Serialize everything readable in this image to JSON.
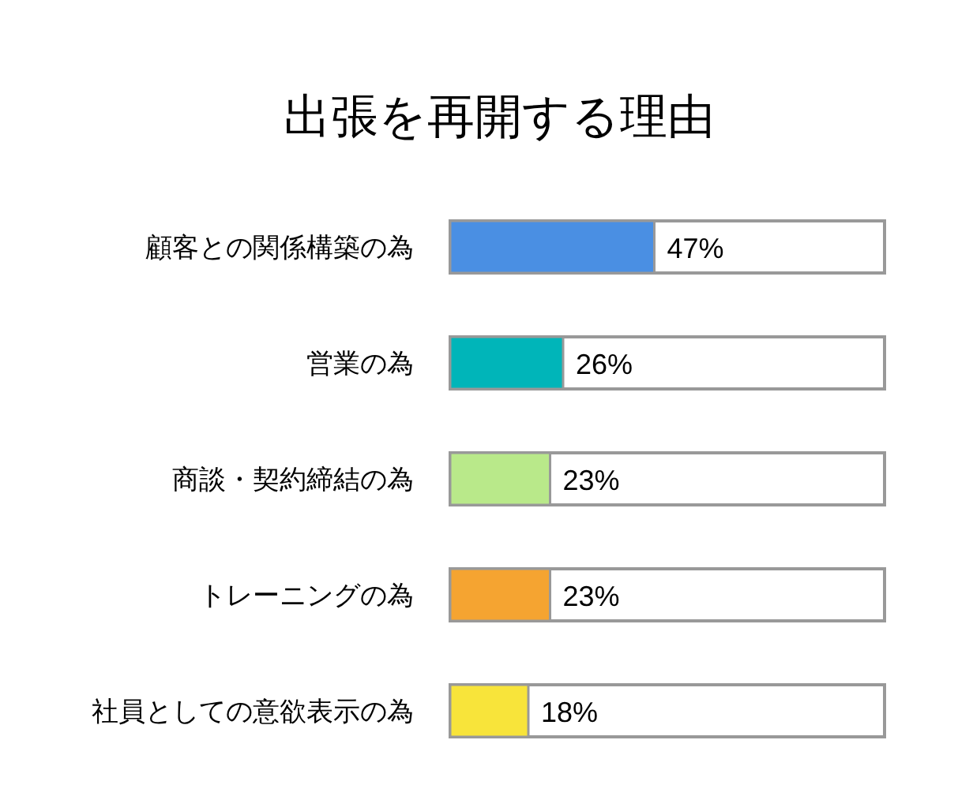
{
  "chart_data": {
    "type": "bar",
    "orientation": "horizontal",
    "title": "出張を再開する理由",
    "categories": [
      "顧客との関係構築の為",
      "営業の為",
      "商談・契約締結の為",
      "トレーニングの為",
      "社員としての意欲表示の為"
    ],
    "values": [
      47,
      26,
      23,
      23,
      18
    ],
    "colors": [
      "#4a8fe3",
      "#00b5b9",
      "#b9e98a",
      "#f5a431",
      "#f8e43a"
    ],
    "xlim": [
      0,
      100
    ],
    "value_labels": [
      "47%",
      "26%",
      "23%",
      "23%",
      "18%"
    ]
  }
}
